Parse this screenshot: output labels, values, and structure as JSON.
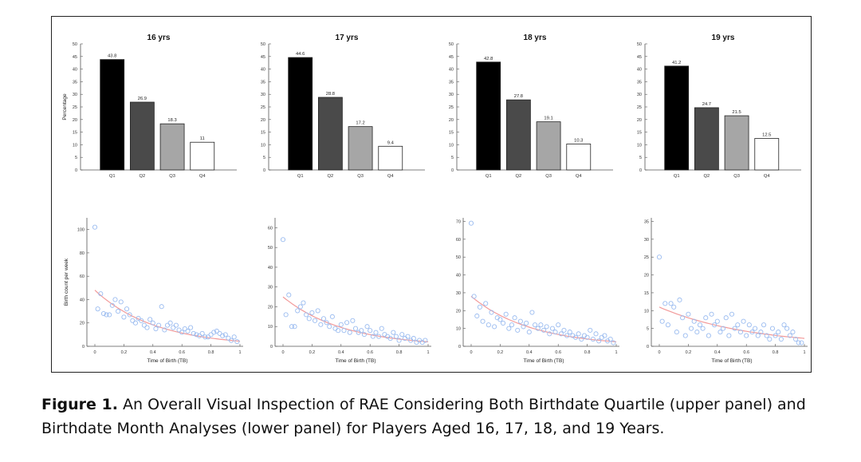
{
  "chart_data": [
    {
      "type": "bar",
      "title": "16 yrs",
      "ylabel": "Percentage",
      "categories": [
        "Q1",
        "Q2",
        "Q3",
        "Q4"
      ],
      "values": [
        43.8,
        26.9,
        18.3,
        11
      ],
      "data_labels": [
        "43.8",
        "26.9",
        "18.3",
        "11"
      ],
      "ylim": [
        0,
        50
      ],
      "yticks": [
        "50",
        "45",
        "40",
        "35",
        "30",
        "25",
        "20",
        "15",
        "10",
        "5",
        "0"
      ]
    },
    {
      "type": "bar",
      "title": "17 yrs",
      "ylabel": "",
      "categories": [
        "Q1",
        "Q2",
        "Q3",
        "Q4"
      ],
      "values": [
        44.6,
        28.8,
        17.2,
        9.4
      ],
      "data_labels": [
        "44.6",
        "28.8",
        "17.2",
        "9.4"
      ],
      "ylim": [
        0,
        50
      ],
      "yticks": [
        "50",
        "45",
        "40",
        "35",
        "30",
        "25",
        "20",
        "15",
        "10",
        "5",
        "0"
      ]
    },
    {
      "type": "bar",
      "title": "18 yrs",
      "ylabel": "",
      "categories": [
        "Q1",
        "Q2",
        "Q3",
        "Q4"
      ],
      "values": [
        42.8,
        27.8,
        19.1,
        10.3
      ],
      "data_labels": [
        "42.8",
        "27.8",
        "19.1",
        "10.3"
      ],
      "ylim": [
        0,
        50
      ],
      "yticks": [
        "50",
        "45",
        "40",
        "35",
        "30",
        "25",
        "20",
        "15",
        "10",
        "5",
        "0"
      ]
    },
    {
      "type": "bar",
      "title": "19 yrs",
      "ylabel": "",
      "categories": [
        "Q1",
        "Q2",
        "Q3",
        "Q4"
      ],
      "values": [
        41.2,
        24.7,
        21.5,
        12.5
      ],
      "data_labels": [
        "41.2",
        "24.7",
        "21.5",
        "12.5"
      ],
      "ylim": [
        0,
        50
      ],
      "yticks": [
        "50",
        "45",
        "40",
        "35",
        "30",
        "25",
        "20",
        "15",
        "10",
        "5",
        "0"
      ]
    },
    {
      "type": "scatter",
      "xlabel": "Time of Birth (TB)",
      "ylabel": "Birth count per week",
      "xlim": [
        0,
        1
      ],
      "ylim": [
        0,
        110
      ],
      "yticks": [
        0,
        20,
        40,
        60,
        80,
        100
      ],
      "xticks": [
        0,
        0.2,
        0.4,
        0.6,
        0.8,
        1
      ],
      "xtick_labels": [
        "0",
        "0.2",
        "0.4",
        "0.6",
        "0.8",
        "1"
      ],
      "ytick_labels": [
        "0",
        "20",
        "40",
        "60",
        "80",
        "100"
      ],
      "fit": {
        "a": 48,
        "b": -2.4
      },
      "points": [
        [
          0.0,
          102
        ],
        [
          0.02,
          32
        ],
        [
          0.04,
          45
        ],
        [
          0.06,
          28
        ],
        [
          0.08,
          27
        ],
        [
          0.1,
          27
        ],
        [
          0.12,
          35
        ],
        [
          0.14,
          40
        ],
        [
          0.16,
          30
        ],
        [
          0.18,
          38
        ],
        [
          0.2,
          25
        ],
        [
          0.22,
          32
        ],
        [
          0.24,
          27
        ],
        [
          0.26,
          22
        ],
        [
          0.28,
          20
        ],
        [
          0.3,
          24
        ],
        [
          0.32,
          22
        ],
        [
          0.34,
          18
        ],
        [
          0.36,
          16
        ],
        [
          0.38,
          23
        ],
        [
          0.4,
          20
        ],
        [
          0.42,
          15
        ],
        [
          0.44,
          18
        ],
        [
          0.46,
          34
        ],
        [
          0.48,
          14
        ],
        [
          0.5,
          18
        ],
        [
          0.52,
          20
        ],
        [
          0.54,
          16
        ],
        [
          0.56,
          18
        ],
        [
          0.58,
          14
        ],
        [
          0.6,
          12
        ],
        [
          0.62,
          15
        ],
        [
          0.64,
          13
        ],
        [
          0.66,
          16
        ],
        [
          0.68,
          11
        ],
        [
          0.7,
          10
        ],
        [
          0.72,
          9
        ],
        [
          0.74,
          11
        ],
        [
          0.76,
          8
        ],
        [
          0.78,
          8
        ],
        [
          0.8,
          10
        ],
        [
          0.82,
          12
        ],
        [
          0.84,
          13
        ],
        [
          0.86,
          11
        ],
        [
          0.88,
          9
        ],
        [
          0.9,
          10
        ],
        [
          0.92,
          7
        ],
        [
          0.94,
          5
        ],
        [
          0.96,
          8
        ],
        [
          0.98,
          4
        ]
      ]
    },
    {
      "type": "scatter",
      "xlabel": "Time of Birth (TB)",
      "ylabel": "",
      "xlim": [
        0,
        1
      ],
      "ylim": [
        0,
        65
      ],
      "yticks": [
        0,
        10,
        20,
        30,
        40,
        50,
        60
      ],
      "xticks": [
        0,
        0.2,
        0.4,
        0.6,
        0.8,
        1
      ],
      "xtick_labels": [
        "0",
        "0.2",
        "0.4",
        "0.6",
        "0.8",
        "1"
      ],
      "ytick_labels": [
        "0",
        "10",
        "20",
        "30",
        "40",
        "50",
        "60"
      ],
      "fit": {
        "a": 25,
        "b": -2.4
      },
      "points": [
        [
          0.0,
          54
        ],
        [
          0.02,
          16
        ],
        [
          0.04,
          26
        ],
        [
          0.06,
          10
        ],
        [
          0.08,
          10
        ],
        [
          0.1,
          18
        ],
        [
          0.12,
          20
        ],
        [
          0.14,
          22
        ],
        [
          0.16,
          16
        ],
        [
          0.18,
          14
        ],
        [
          0.2,
          17
        ],
        [
          0.22,
          13
        ],
        [
          0.24,
          18
        ],
        [
          0.26,
          11
        ],
        [
          0.28,
          14
        ],
        [
          0.3,
          12
        ],
        [
          0.32,
          10
        ],
        [
          0.34,
          15
        ],
        [
          0.36,
          9
        ],
        [
          0.38,
          8
        ],
        [
          0.4,
          11
        ],
        [
          0.42,
          8
        ],
        [
          0.44,
          12
        ],
        [
          0.46,
          7
        ],
        [
          0.48,
          13
        ],
        [
          0.5,
          9
        ],
        [
          0.52,
          7
        ],
        [
          0.54,
          8
        ],
        [
          0.56,
          6
        ],
        [
          0.58,
          10
        ],
        [
          0.6,
          8
        ],
        [
          0.62,
          5
        ],
        [
          0.64,
          7
        ],
        [
          0.66,
          5
        ],
        [
          0.68,
          9
        ],
        [
          0.7,
          6
        ],
        [
          0.72,
          5
        ],
        [
          0.74,
          4
        ],
        [
          0.76,
          7
        ],
        [
          0.78,
          5
        ],
        [
          0.8,
          3
        ],
        [
          0.82,
          6
        ],
        [
          0.84,
          4
        ],
        [
          0.86,
          5
        ],
        [
          0.88,
          3
        ],
        [
          0.9,
          4
        ],
        [
          0.92,
          2
        ],
        [
          0.94,
          3
        ],
        [
          0.96,
          2
        ],
        [
          0.98,
          3
        ]
      ]
    },
    {
      "type": "scatter",
      "xlabel": "Time of Birth (TB)",
      "ylabel": "",
      "xlim": [
        0,
        1
      ],
      "ylim": [
        0,
        72
      ],
      "yticks": [
        0,
        10,
        20,
        30,
        40,
        50,
        60,
        70
      ],
      "xticks": [
        0,
        0.2,
        0.4,
        0.6,
        0.8,
        1
      ],
      "xtick_labels": [
        "0",
        "0.2",
        "0.4",
        "0.6",
        "0.8",
        "1"
      ],
      "ytick_labels": [
        "0",
        "10",
        "20",
        "30",
        "40",
        "50",
        "60",
        "70"
      ],
      "fit": {
        "a": 28,
        "b": -2.4
      },
      "points": [
        [
          0.0,
          69
        ],
        [
          0.02,
          28
        ],
        [
          0.04,
          17
        ],
        [
          0.06,
          22
        ],
        [
          0.08,
          14
        ],
        [
          0.1,
          24
        ],
        [
          0.12,
          12
        ],
        [
          0.14,
          19
        ],
        [
          0.16,
          11
        ],
        [
          0.18,
          16
        ],
        [
          0.2,
          15
        ],
        [
          0.22,
          13
        ],
        [
          0.24,
          18
        ],
        [
          0.26,
          10
        ],
        [
          0.28,
          12
        ],
        [
          0.3,
          16
        ],
        [
          0.32,
          9
        ],
        [
          0.34,
          14
        ],
        [
          0.36,
          11
        ],
        [
          0.38,
          13
        ],
        [
          0.4,
          8
        ],
        [
          0.42,
          19
        ],
        [
          0.44,
          12
        ],
        [
          0.46,
          10
        ],
        [
          0.48,
          12
        ],
        [
          0.5,
          9
        ],
        [
          0.52,
          11
        ],
        [
          0.54,
          7
        ],
        [
          0.56,
          10
        ],
        [
          0.58,
          8
        ],
        [
          0.6,
          12
        ],
        [
          0.62,
          7
        ],
        [
          0.64,
          9
        ],
        [
          0.66,
          6
        ],
        [
          0.68,
          8
        ],
        [
          0.7,
          6
        ],
        [
          0.72,
          5
        ],
        [
          0.74,
          7
        ],
        [
          0.76,
          4
        ],
        [
          0.78,
          6
        ],
        [
          0.8,
          5
        ],
        [
          0.82,
          9
        ],
        [
          0.84,
          4
        ],
        [
          0.86,
          7
        ],
        [
          0.88,
          3
        ],
        [
          0.9,
          5
        ],
        [
          0.92,
          6
        ],
        [
          0.94,
          3
        ],
        [
          0.96,
          4
        ],
        [
          0.98,
          2
        ]
      ]
    },
    {
      "type": "scatter",
      "xlabel": "Time of Birth (TB)",
      "ylabel": "",
      "xlim": [
        0,
        1
      ],
      "ylim": [
        0,
        36
      ],
      "yticks": [
        0,
        5,
        10,
        15,
        20,
        25,
        30,
        35
      ],
      "xticks": [
        0,
        0.2,
        0.4,
        0.6,
        0.8,
        1
      ],
      "xtick_labels": [
        "0",
        "0.2",
        "0.4",
        "0.6",
        "0.8",
        "1"
      ],
      "ytick_labels": [
        "0",
        "5",
        "10",
        "15",
        "20",
        "25",
        "30",
        "35"
      ],
      "fit": {
        "a": 11,
        "b": -1.6
      },
      "points": [
        [
          0.0,
          25
        ],
        [
          0.02,
          7
        ],
        [
          0.04,
          12
        ],
        [
          0.06,
          6
        ],
        [
          0.08,
          12
        ],
        [
          0.1,
          11
        ],
        [
          0.12,
          4
        ],
        [
          0.14,
          13
        ],
        [
          0.16,
          8
        ],
        [
          0.18,
          3
        ],
        [
          0.2,
          9
        ],
        [
          0.22,
          5
        ],
        [
          0.24,
          7
        ],
        [
          0.26,
          4
        ],
        [
          0.28,
          6
        ],
        [
          0.3,
          5
        ],
        [
          0.32,
          8
        ],
        [
          0.34,
          3
        ],
        [
          0.36,
          9
        ],
        [
          0.38,
          6
        ],
        [
          0.4,
          7
        ],
        [
          0.42,
          4
        ],
        [
          0.44,
          5
        ],
        [
          0.46,
          8
        ],
        [
          0.48,
          3
        ],
        [
          0.5,
          9
        ],
        [
          0.52,
          5
        ],
        [
          0.54,
          6
        ],
        [
          0.56,
          4
        ],
        [
          0.58,
          7
        ],
        [
          0.6,
          3
        ],
        [
          0.62,
          6
        ],
        [
          0.64,
          4
        ],
        [
          0.66,
          5
        ],
        [
          0.68,
          3
        ],
        [
          0.7,
          4
        ],
        [
          0.72,
          6
        ],
        [
          0.74,
          3
        ],
        [
          0.76,
          2
        ],
        [
          0.78,
          5
        ],
        [
          0.8,
          3
        ],
        [
          0.82,
          4
        ],
        [
          0.84,
          2
        ],
        [
          0.86,
          6
        ],
        [
          0.88,
          5
        ],
        [
          0.9,
          3
        ],
        [
          0.92,
          4
        ],
        [
          0.94,
          2
        ],
        [
          0.96,
          1
        ],
        [
          0.98,
          1
        ]
      ]
    }
  ],
  "colors": {
    "bar_fills": [
      "#000000",
      "#4a4a4a",
      "#a6a6a6",
      "#ffffff"
    ],
    "marker": "#9bbcf0",
    "fit_line": "#f29a9a",
    "axis": "#555555"
  },
  "caption": {
    "label": "Figure 1.",
    "text": "An Overall Visual Inspection of RAE Considering Both Birthdate Quartile (upper panel) and Birthdate Month Analyses (lower panel) for Players Aged 16, 17, 18, and 19 Years."
  }
}
